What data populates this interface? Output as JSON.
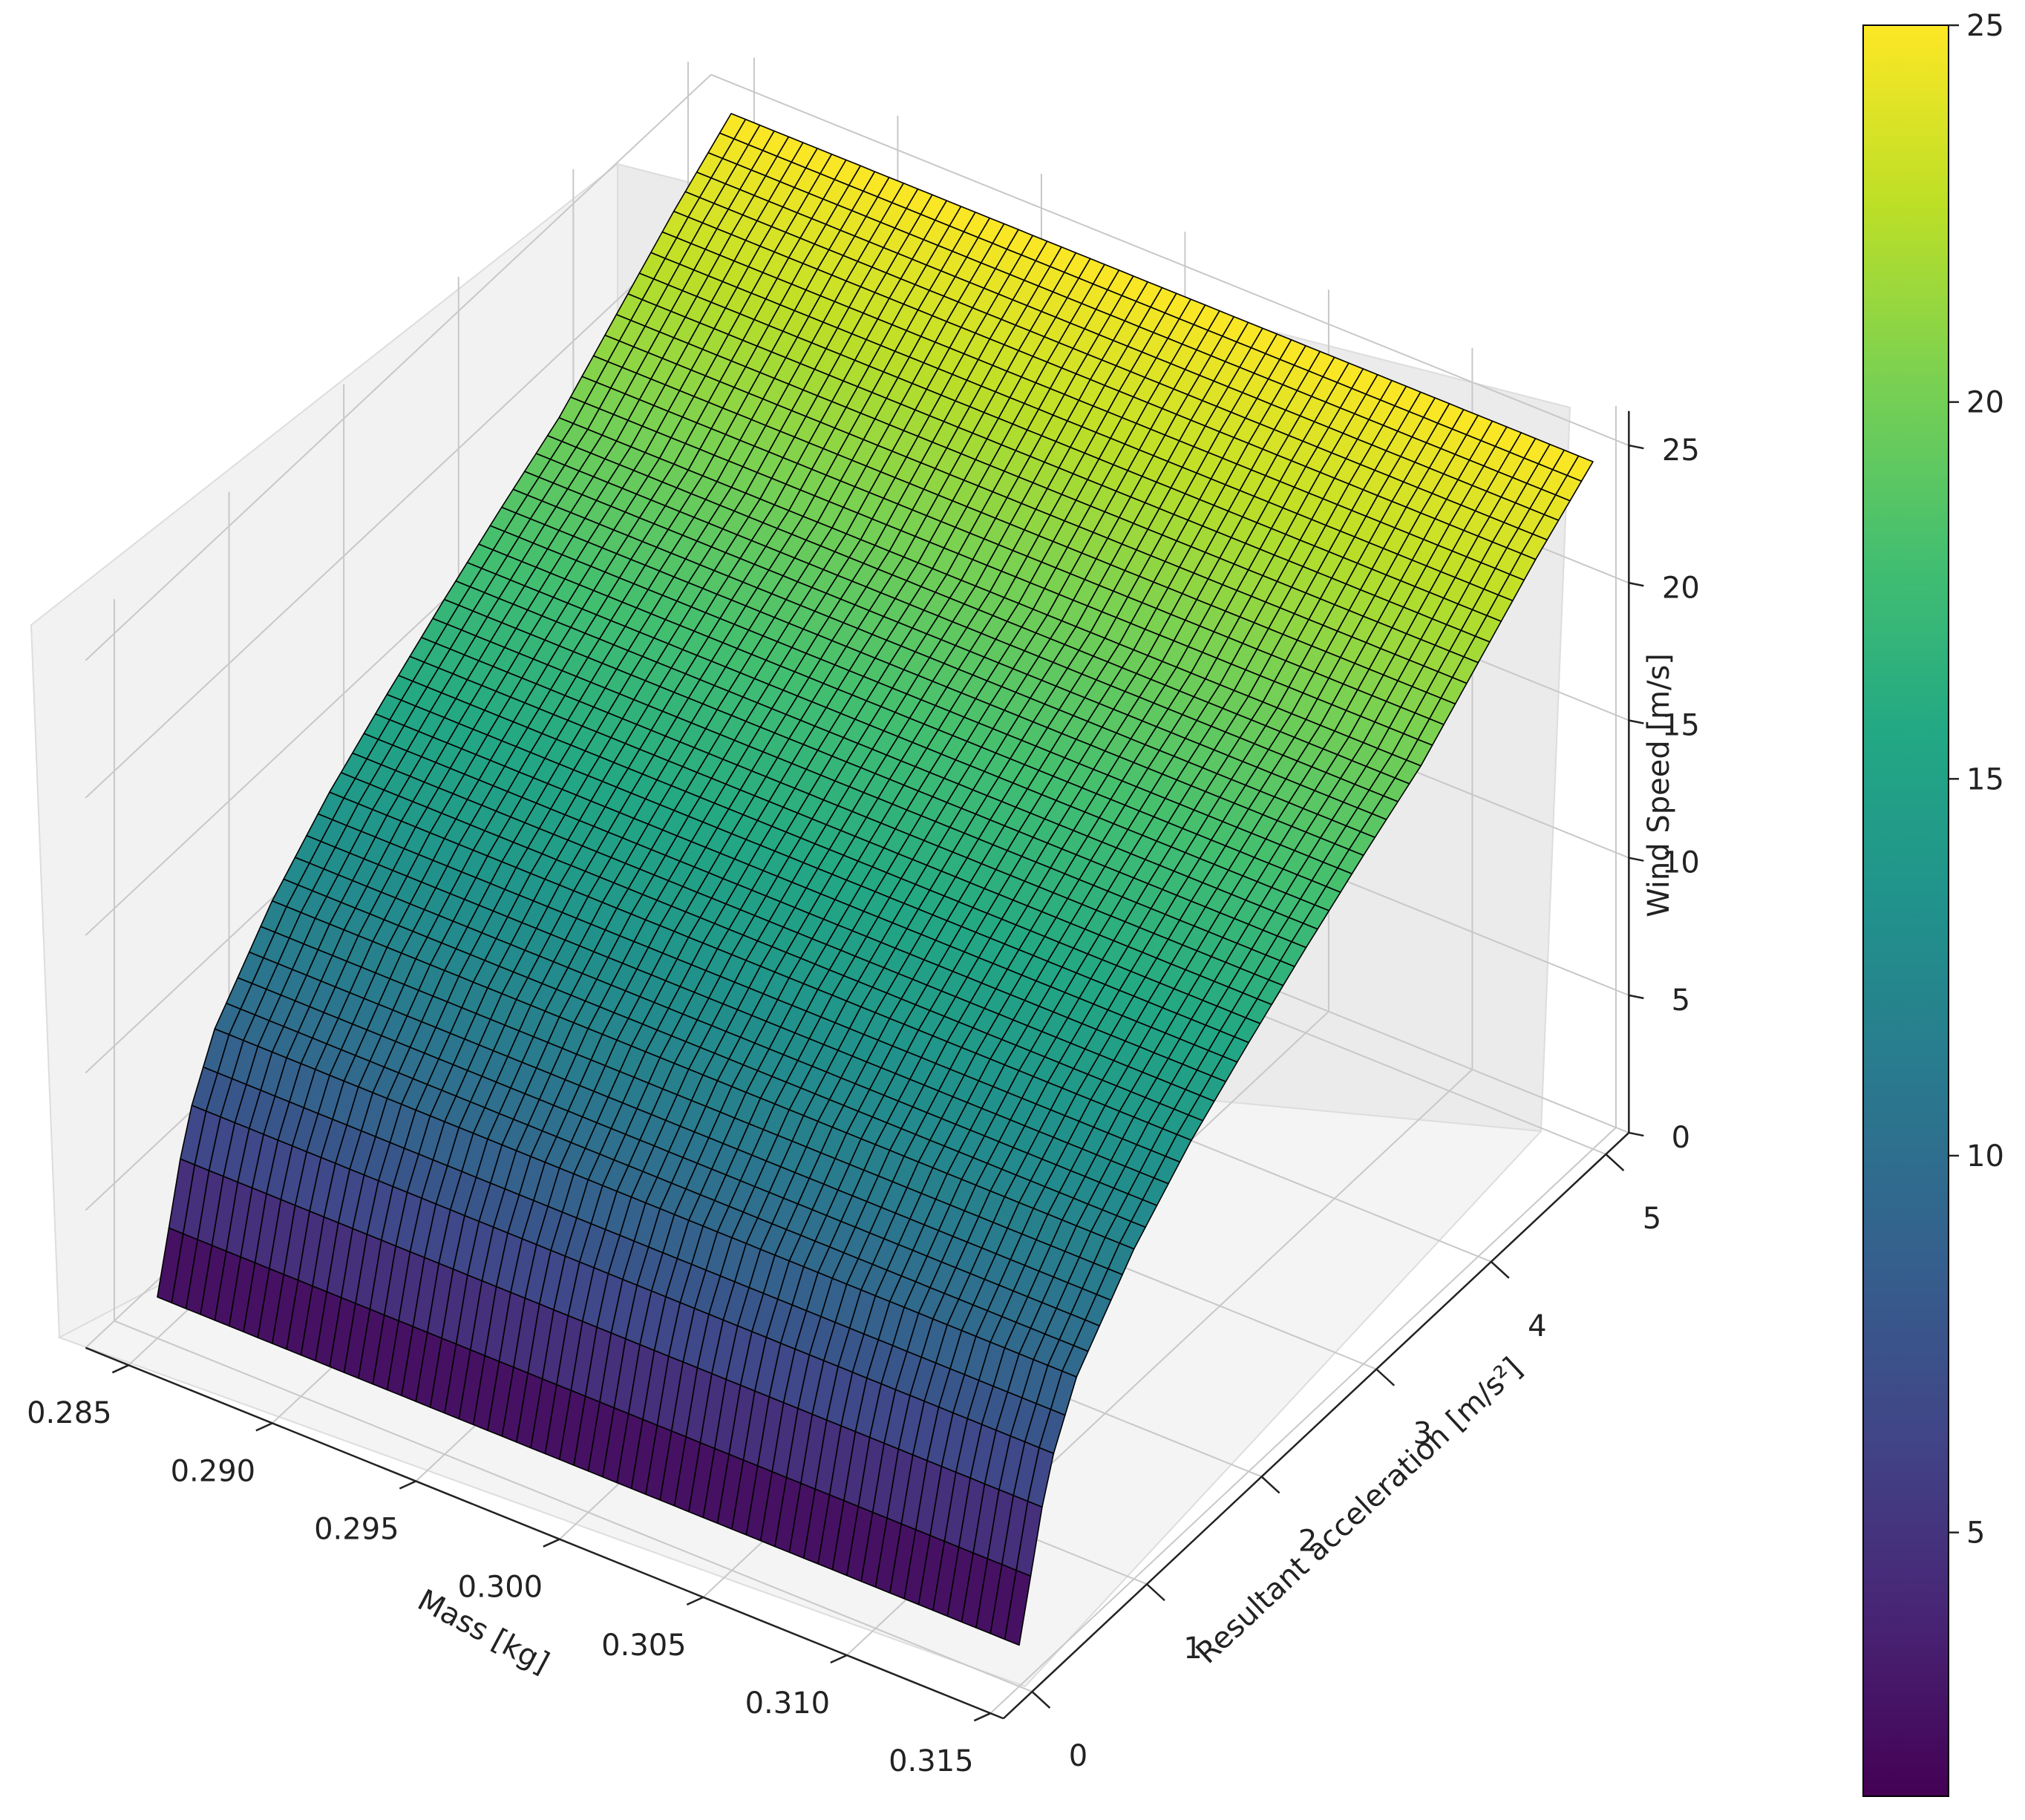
{
  "chart_data": {
    "type": "surface3d",
    "title": "",
    "xlabel": "Mass [kg]",
    "ylabel": "Resultant acceleration [m/s²]",
    "zlabel": "Wind Speed [m/s]",
    "x_range": [
      0.285,
      0.315
    ],
    "y_range": [
      0,
      5
    ],
    "z_range": [
      0,
      25
    ],
    "x_ticks": [
      "0.285",
      "0.290",
      "0.295",
      "0.300",
      "0.305",
      "0.310",
      "0.315"
    ],
    "y_ticks": [
      "0",
      "1",
      "2",
      "3",
      "4",
      "5"
    ],
    "z_ticks": [
      "0",
      "5",
      "10",
      "15",
      "20",
      "25"
    ],
    "colorbar": {
      "colormap": "viridis",
      "range": [
        1.5,
        25
      ],
      "ticks": [
        "5",
        "10",
        "15",
        "20",
        "25"
      ]
    },
    "surface": {
      "mesh_x": 60,
      "mesh_y": 50,
      "edge_color": "#000000",
      "y_samples": [
        0,
        0.25,
        0.5,
        1,
        1.5,
        2,
        2.5,
        3,
        3.5,
        4,
        4.5,
        5
      ],
      "z_samples": [
        1.5,
        6.8,
        9.3,
        12.0,
        14.0,
        15.6,
        17.1,
        18.5,
        19.8,
        21.6,
        23.4,
        25.0
      ]
    },
    "grid": true
  }
}
